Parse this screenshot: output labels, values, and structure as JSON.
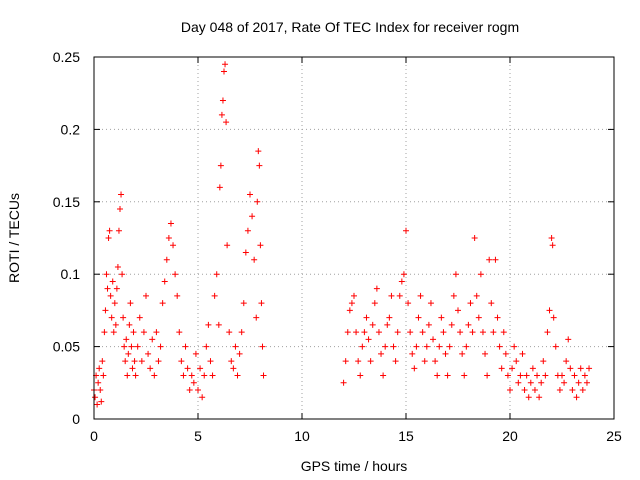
{
  "chart_data": {
    "type": "scatter",
    "title": "Day 048 of 2017, Rate Of TEC Index for receiver rogm",
    "xlabel": "GPS time / hours",
    "ylabel": "ROTI / TECUs",
    "xlim": [
      0,
      25
    ],
    "ylim": [
      0,
      0.25
    ],
    "x_ticks": [
      0,
      5,
      10,
      15,
      20,
      25
    ],
    "x_tick_labels": [
      "0",
      "5",
      "10",
      "15",
      "20",
      "25"
    ],
    "y_ticks": [
      0,
      0.05,
      0.1,
      0.15,
      0.2,
      0.25
    ],
    "y_tick_labels": [
      "0",
      "0.05",
      "0.1",
      "0.15",
      "0.2",
      "0.25"
    ],
    "grid": true,
    "marker": "+",
    "color": "#ff0000",
    "series": [
      {
        "points": [
          [
            0.0,
            0.02
          ],
          [
            0.05,
            0.015
          ],
          [
            0.1,
            0.03
          ],
          [
            0.15,
            0.01
          ],
          [
            0.2,
            0.025
          ],
          [
            0.25,
            0.035
          ],
          [
            0.3,
            0.02
          ],
          [
            0.35,
            0.012
          ],
          [
            0.4,
            0.04
          ],
          [
            0.45,
            0.03
          ],
          [
            0.5,
            0.06
          ],
          [
            0.55,
            0.075
          ],
          [
            0.6,
            0.1
          ],
          [
            0.65,
            0.09
          ],
          [
            0.7,
            0.125
          ],
          [
            0.75,
            0.13
          ],
          [
            0.8,
            0.085
          ],
          [
            0.85,
            0.07
          ],
          [
            0.9,
            0.095
          ],
          [
            0.95,
            0.06
          ],
          [
            1.0,
            0.08
          ],
          [
            1.05,
            0.065
          ],
          [
            1.1,
            0.09
          ],
          [
            1.15,
            0.105
          ],
          [
            1.2,
            0.13
          ],
          [
            1.25,
            0.145
          ],
          [
            1.3,
            0.155
          ],
          [
            1.35,
            0.1
          ],
          [
            1.4,
            0.07
          ],
          [
            1.45,
            0.05
          ],
          [
            1.5,
            0.04
          ],
          [
            1.55,
            0.055
          ],
          [
            1.6,
            0.03
          ],
          [
            1.65,
            0.045
          ],
          [
            1.7,
            0.065
          ],
          [
            1.75,
            0.08
          ],
          [
            1.8,
            0.05
          ],
          [
            1.85,
            0.035
          ],
          [
            1.9,
            0.06
          ],
          [
            1.95,
            0.04
          ],
          [
            2.0,
            0.03
          ],
          [
            2.1,
            0.05
          ],
          [
            2.2,
            0.07
          ],
          [
            2.3,
            0.04
          ],
          [
            2.4,
            0.06
          ],
          [
            2.5,
            0.085
          ],
          [
            2.6,
            0.045
          ],
          [
            2.7,
            0.035
          ],
          [
            2.8,
            0.055
          ],
          [
            2.9,
            0.03
          ],
          [
            3.0,
            0.06
          ],
          [
            3.1,
            0.04
          ],
          [
            3.2,
            0.05
          ],
          [
            3.3,
            0.08
          ],
          [
            3.4,
            0.095
          ],
          [
            3.5,
            0.11
          ],
          [
            3.6,
            0.125
          ],
          [
            3.7,
            0.135
          ],
          [
            3.8,
            0.12
          ],
          [
            3.9,
            0.1
          ],
          [
            4.0,
            0.085
          ],
          [
            4.1,
            0.06
          ],
          [
            4.2,
            0.04
          ],
          [
            4.3,
            0.03
          ],
          [
            4.4,
            0.05
          ],
          [
            4.5,
            0.035
          ],
          [
            4.6,
            0.02
          ],
          [
            4.7,
            0.03
          ],
          [
            4.8,
            0.025
          ],
          [
            4.9,
            0.045
          ],
          [
            5.0,
            0.02
          ],
          [
            5.1,
            0.035
          ],
          [
            5.2,
            0.015
          ],
          [
            5.3,
            0.03
          ],
          [
            5.4,
            0.05
          ],
          [
            5.5,
            0.065
          ],
          [
            5.6,
            0.04
          ],
          [
            5.7,
            0.03
          ],
          [
            5.8,
            0.085
          ],
          [
            5.9,
            0.1
          ],
          [
            6.0,
            0.065
          ],
          [
            6.05,
            0.16
          ],
          [
            6.1,
            0.175
          ],
          [
            6.15,
            0.21
          ],
          [
            6.2,
            0.22
          ],
          [
            6.25,
            0.24
          ],
          [
            6.3,
            0.245
          ],
          [
            6.35,
            0.205
          ],
          [
            6.4,
            0.12
          ],
          [
            6.5,
            0.06
          ],
          [
            6.6,
            0.04
          ],
          [
            6.7,
            0.035
          ],
          [
            6.8,
            0.05
          ],
          [
            6.9,
            0.03
          ],
          [
            7.0,
            0.045
          ],
          [
            7.1,
            0.06
          ],
          [
            7.2,
            0.08
          ],
          [
            7.3,
            0.115
          ],
          [
            7.4,
            0.13
          ],
          [
            7.5,
            0.155
          ],
          [
            7.6,
            0.14
          ],
          [
            7.7,
            0.11
          ],
          [
            7.8,
            0.07
          ],
          [
            7.85,
            0.15
          ],
          [
            7.9,
            0.185
          ],
          [
            7.95,
            0.175
          ],
          [
            8.0,
            0.12
          ],
          [
            8.05,
            0.08
          ],
          [
            8.1,
            0.05
          ],
          [
            8.15,
            0.03
          ],
          [
            12.0,
            0.025
          ],
          [
            12.1,
            0.04
          ],
          [
            12.2,
            0.06
          ],
          [
            12.3,
            0.075
          ],
          [
            12.4,
            0.08
          ],
          [
            12.5,
            0.085
          ],
          [
            12.6,
            0.06
          ],
          [
            12.7,
            0.04
          ],
          [
            12.8,
            0.03
          ],
          [
            12.9,
            0.05
          ],
          [
            13.0,
            0.06
          ],
          [
            13.1,
            0.07
          ],
          [
            13.2,
            0.055
          ],
          [
            13.3,
            0.04
          ],
          [
            13.4,
            0.065
          ],
          [
            13.5,
            0.08
          ],
          [
            13.6,
            0.09
          ],
          [
            13.7,
            0.06
          ],
          [
            13.8,
            0.045
          ],
          [
            13.9,
            0.03
          ],
          [
            14.0,
            0.05
          ],
          [
            14.1,
            0.065
          ],
          [
            14.2,
            0.07
          ],
          [
            14.3,
            0.085
          ],
          [
            14.4,
            0.05
          ],
          [
            14.5,
            0.04
          ],
          [
            14.6,
            0.06
          ],
          [
            14.7,
            0.085
          ],
          [
            14.8,
            0.095
          ],
          [
            14.9,
            0.1
          ],
          [
            15.0,
            0.13
          ],
          [
            15.1,
            0.08
          ],
          [
            15.2,
            0.06
          ],
          [
            15.3,
            0.045
          ],
          [
            15.4,
            0.035
          ],
          [
            15.5,
            0.05
          ],
          [
            15.6,
            0.07
          ],
          [
            15.7,
            0.085
          ],
          [
            15.8,
            0.06
          ],
          [
            15.9,
            0.04
          ],
          [
            16.0,
            0.05
          ],
          [
            16.1,
            0.065
          ],
          [
            16.2,
            0.08
          ],
          [
            16.3,
            0.055
          ],
          [
            16.4,
            0.04
          ],
          [
            16.5,
            0.03
          ],
          [
            16.6,
            0.05
          ],
          [
            16.7,
            0.07
          ],
          [
            16.8,
            0.06
          ],
          [
            16.9,
            0.045
          ],
          [
            17.0,
            0.03
          ],
          [
            17.1,
            0.05
          ],
          [
            17.2,
            0.065
          ],
          [
            17.3,
            0.085
          ],
          [
            17.4,
            0.1
          ],
          [
            17.5,
            0.075
          ],
          [
            17.6,
            0.06
          ],
          [
            17.7,
            0.045
          ],
          [
            17.8,
            0.03
          ],
          [
            17.9,
            0.05
          ],
          [
            18.0,
            0.065
          ],
          [
            18.1,
            0.08
          ],
          [
            18.2,
            0.06
          ],
          [
            18.3,
            0.125
          ],
          [
            18.4,
            0.085
          ],
          [
            18.5,
            0.07
          ],
          [
            18.6,
            0.1
          ],
          [
            18.7,
            0.06
          ],
          [
            18.8,
            0.045
          ],
          [
            18.9,
            0.03
          ],
          [
            19.0,
            0.11
          ],
          [
            19.1,
            0.08
          ],
          [
            19.2,
            0.06
          ],
          [
            19.3,
            0.11
          ],
          [
            19.4,
            0.07
          ],
          [
            19.5,
            0.05
          ],
          [
            19.6,
            0.035
          ],
          [
            19.7,
            0.06
          ],
          [
            19.8,
            0.045
          ],
          [
            19.9,
            0.03
          ],
          [
            20.0,
            0.02
          ],
          [
            20.1,
            0.035
          ],
          [
            20.2,
            0.05
          ],
          [
            20.3,
            0.04
          ],
          [
            20.4,
            0.025
          ],
          [
            20.5,
            0.03
          ],
          [
            20.6,
            0.045
          ],
          [
            20.7,
            0.02
          ],
          [
            20.8,
            0.03
          ],
          [
            20.9,
            0.015
          ],
          [
            21.0,
            0.025
          ],
          [
            21.1,
            0.035
          ],
          [
            21.2,
            0.02
          ],
          [
            21.3,
            0.03
          ],
          [
            21.4,
            0.015
          ],
          [
            21.5,
            0.025
          ],
          [
            21.6,
            0.04
          ],
          [
            21.7,
            0.03
          ],
          [
            21.8,
            0.06
          ],
          [
            21.9,
            0.075
          ],
          [
            22.0,
            0.125
          ],
          [
            22.05,
            0.12
          ],
          [
            22.1,
            0.07
          ],
          [
            22.2,
            0.05
          ],
          [
            22.3,
            0.03
          ],
          [
            22.4,
            0.02
          ],
          [
            22.5,
            0.03
          ],
          [
            22.6,
            0.025
          ],
          [
            22.7,
            0.04
          ],
          [
            22.8,
            0.055
          ],
          [
            22.9,
            0.035
          ],
          [
            23.0,
            0.02
          ],
          [
            23.1,
            0.03
          ],
          [
            23.2,
            0.015
          ],
          [
            23.3,
            0.025
          ],
          [
            23.4,
            0.035
          ],
          [
            23.5,
            0.02
          ],
          [
            23.6,
            0.03
          ],
          [
            23.7,
            0.025
          ],
          [
            23.8,
            0.035
          ]
        ]
      }
    ]
  }
}
